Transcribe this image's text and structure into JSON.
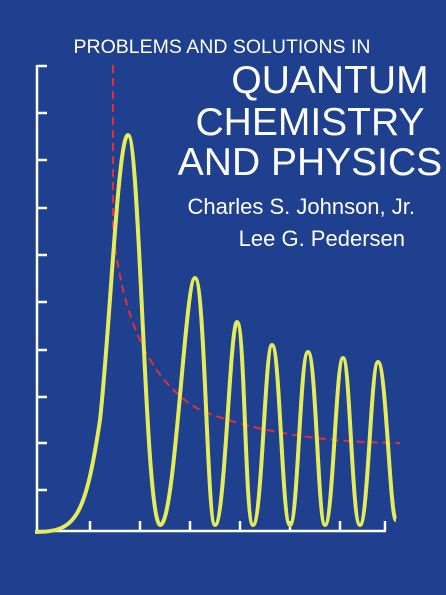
{
  "cover": {
    "title_lines": [
      "PROBLEMS AND SOLUTIONS IN",
      "QUANTUM",
      "CHEMISTRY",
      "AND PHYSICS"
    ],
    "authors": [
      "Charles S. Johnson, Jr.",
      "Lee G. Pedersen"
    ]
  }
}
